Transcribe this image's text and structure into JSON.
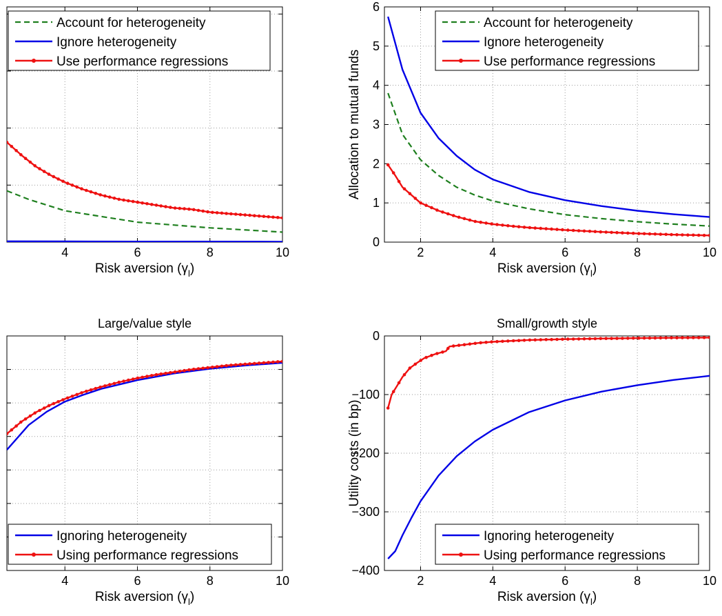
{
  "chart_data": [
    {
      "type": "line",
      "panel": "top-left",
      "title": "",
      "xlabel": "Risk aversion (γ",
      "xlabel_subscript": "l",
      "xlabel_suffix": ")",
      "ylabel": "",
      "xlim": [
        2.4,
        10
      ],
      "ylim": [
        0,
        1.65
      ],
      "xticks": [
        4,
        6,
        8,
        10
      ],
      "xtick_labels": [
        "4",
        "6",
        "8",
        "10"
      ],
      "yticks": [
        0.4,
        0.8,
        1.2,
        1.6
      ],
      "ytick_labels": [],
      "grid": true,
      "legend": {
        "placement": "top",
        "entries": [
          "Account for heterogeneity",
          "Ignore heterogeneity",
          "Use performance regressions"
        ]
      },
      "series": [
        {
          "name": "Account for heterogeneity",
          "style": "dashed",
          "color": "#1e7f1e",
          "markers": false,
          "points": [
            [
              2.4,
              0.36
            ],
            [
              3,
              0.3
            ],
            [
              3.5,
              0.26
            ],
            [
              4,
              0.22
            ],
            [
              5,
              0.18
            ],
            [
              6,
              0.14
            ],
            [
              7,
              0.12
            ],
            [
              8,
              0.1
            ],
            [
              9,
              0.085
            ],
            [
              10,
              0.07
            ]
          ]
        },
        {
          "name": "Ignore heterogeneity",
          "style": "solid",
          "color": "#0000e6",
          "markers": false,
          "points": [
            [
              2.4,
              0.006
            ],
            [
              4,
              0.005
            ],
            [
              6,
              0.004
            ],
            [
              8,
              0.004
            ],
            [
              10,
              0.003
            ]
          ]
        },
        {
          "name": "Use performance regressions",
          "style": "solid",
          "color": "#ee1111",
          "markers": true,
          "points": [
            [
              2.4,
              0.7
            ],
            [
              2.8,
              0.61
            ],
            [
              3.2,
              0.53
            ],
            [
              3.6,
              0.47
            ],
            [
              4,
              0.42
            ],
            [
              4.5,
              0.37
            ],
            [
              5,
              0.33
            ],
            [
              5.5,
              0.3
            ],
            [
              6,
              0.28
            ],
            [
              6.5,
              0.26
            ],
            [
              7,
              0.24
            ],
            [
              7.5,
              0.23
            ],
            [
              8,
              0.21
            ],
            [
              8.5,
              0.2
            ],
            [
              9,
              0.19
            ],
            [
              9.5,
              0.18
            ],
            [
              10,
              0.17
            ]
          ]
        }
      ]
    },
    {
      "type": "line",
      "panel": "top-right",
      "title": "",
      "xlabel": "Risk aversion (γ",
      "xlabel_subscript": "l",
      "xlabel_suffix": ")",
      "ylabel": "Allocation to mutual funds",
      "xlim": [
        1,
        10
      ],
      "ylim": [
        0,
        6
      ],
      "xticks": [
        2,
        4,
        6,
        8,
        10
      ],
      "xtick_labels": [
        "2",
        "4",
        "6",
        "8",
        "10"
      ],
      "yticks": [
        0,
        1,
        2,
        3,
        4,
        5,
        6
      ],
      "ytick_labels": [
        "0",
        "1",
        "2",
        "3",
        "4",
        "5",
        "6"
      ],
      "grid": true,
      "legend": {
        "placement": "top-right",
        "entries": [
          "Account for heterogeneity",
          "Ignore heterogeneity",
          "Use performance regressions"
        ]
      },
      "series": [
        {
          "name": "Account for heterogeneity",
          "style": "dashed",
          "color": "#1e7f1e",
          "markers": false,
          "points": [
            [
              1.1,
              3.8
            ],
            [
              1.5,
              2.75
            ],
            [
              2,
              2.1
            ],
            [
              2.5,
              1.7
            ],
            [
              3,
              1.4
            ],
            [
              3.5,
              1.2
            ],
            [
              4,
              1.05
            ],
            [
              5,
              0.85
            ],
            [
              6,
              0.7
            ],
            [
              7,
              0.6
            ],
            [
              8,
              0.52
            ],
            [
              9,
              0.46
            ],
            [
              10,
              0.41
            ]
          ]
        },
        {
          "name": "Ignore heterogeneity",
          "style": "solid",
          "color": "#0000e6",
          "markers": false,
          "points": [
            [
              1.1,
              5.75
            ],
            [
              1.5,
              4.4
            ],
            [
              2,
              3.3
            ],
            [
              2.5,
              2.65
            ],
            [
              3,
              2.2
            ],
            [
              3.5,
              1.85
            ],
            [
              4,
              1.6
            ],
            [
              5,
              1.28
            ],
            [
              6,
              1.07
            ],
            [
              7,
              0.92
            ],
            [
              8,
              0.8
            ],
            [
              9,
              0.71
            ],
            [
              10,
              0.64
            ]
          ]
        },
        {
          "name": "Use performance regressions",
          "style": "solid",
          "color": "#ee1111",
          "markers": true,
          "points": [
            [
              1.1,
              1.97
            ],
            [
              1.3,
              1.7
            ],
            [
              1.5,
              1.4
            ],
            [
              1.75,
              1.2
            ],
            [
              2,
              1.0
            ],
            [
              2.5,
              0.8
            ],
            [
              3,
              0.65
            ],
            [
              3.5,
              0.53
            ],
            [
              4,
              0.46
            ],
            [
              4.5,
              0.41
            ],
            [
              5,
              0.37
            ],
            [
              6,
              0.31
            ],
            [
              7,
              0.26
            ],
            [
              8,
              0.22
            ],
            [
              9,
              0.19
            ],
            [
              10,
              0.17
            ]
          ]
        }
      ]
    },
    {
      "type": "line",
      "panel": "bottom-left",
      "title": "Large/value style",
      "xlabel": "Risk aversion (γ",
      "xlabel_subscript": "l",
      "xlabel_suffix": ")",
      "ylabel": "",
      "xlim": [
        2.4,
        10
      ],
      "ylim": [
        -350,
        0
      ],
      "xticks": [
        4,
        6,
        8,
        10
      ],
      "xtick_labels": [
        "4",
        "6",
        "8",
        "10"
      ],
      "yticks": [
        -50,
        -100,
        -150,
        -200,
        -250,
        -300
      ],
      "ytick_labels": [],
      "grid": true,
      "legend": {
        "placement": "bottom",
        "entries": [
          "Ignoring heterogeneity",
          "Using performance regressions"
        ]
      },
      "series": [
        {
          "name": "Ignoring heterogeneity",
          "style": "solid",
          "color": "#0000e6",
          "markers": false,
          "points": [
            [
              2.4,
              -170
            ],
            [
              3,
              -133
            ],
            [
              3.5,
              -113
            ],
            [
              4,
              -98
            ],
            [
              4.5,
              -88
            ],
            [
              5,
              -79
            ],
            [
              6,
              -66
            ],
            [
              7,
              -56
            ],
            [
              8,
              -49
            ],
            [
              9,
              -44
            ],
            [
              10,
              -40
            ]
          ]
        },
        {
          "name": "Using performance regressions",
          "style": "solid",
          "color": "#ee1111",
          "markers": true,
          "points": [
            [
              2.4,
              -146
            ],
            [
              2.8,
              -128
            ],
            [
              3.2,
              -114
            ],
            [
              3.6,
              -103
            ],
            [
              4,
              -94
            ],
            [
              4.5,
              -84
            ],
            [
              5,
              -76
            ],
            [
              5.5,
              -69
            ],
            [
              6,
              -63
            ],
            [
              6.5,
              -58
            ],
            [
              7,
              -54
            ],
            [
              7.5,
              -50
            ],
            [
              8,
              -47
            ],
            [
              8.5,
              -44
            ],
            [
              9,
              -42
            ],
            [
              9.5,
              -40
            ],
            [
              10,
              -38
            ]
          ]
        }
      ]
    },
    {
      "type": "line",
      "panel": "bottom-right",
      "title": "Small/growth style",
      "xlabel": "Risk aversion (γ",
      "xlabel_subscript": "l",
      "xlabel_suffix": ")",
      "ylabel": "Utility costs (in bp)",
      "xlim": [
        1,
        10
      ],
      "ylim": [
        -400,
        0
      ],
      "xticks": [
        2,
        4,
        6,
        8,
        10
      ],
      "xtick_labels": [
        "2",
        "4",
        "6",
        "8",
        "10"
      ],
      "yticks": [
        0,
        -100,
        -200,
        -300,
        -400
      ],
      "ytick_labels": [
        "0",
        "−100",
        "−200",
        "−300",
        "−400"
      ],
      "grid": true,
      "legend": {
        "placement": "bottom-right",
        "entries": [
          "Ignoring heterogeneity",
          "Using performance regressions"
        ]
      },
      "series": [
        {
          "name": "Ignoring heterogeneity",
          "style": "solid",
          "color": "#0000e6",
          "markers": false,
          "points": [
            [
              1.1,
              -380
            ],
            [
              1.3,
              -367
            ],
            [
              1.5,
              -340
            ],
            [
              1.75,
              -310
            ],
            [
              2,
              -282
            ],
            [
              2.5,
              -238
            ],
            [
              3,
              -205
            ],
            [
              3.5,
              -180
            ],
            [
              4,
              -160
            ],
            [
              5,
              -130
            ],
            [
              6,
              -110
            ],
            [
              7,
              -95
            ],
            [
              8,
              -84
            ],
            [
              9,
              -75
            ],
            [
              10,
              -68
            ]
          ]
        },
        {
          "name": "Using performance regressions",
          "style": "solid",
          "color": "#ee1111",
          "markers": true,
          "points": [
            [
              1.1,
              -123
            ],
            [
              1.2,
              -100
            ],
            [
              1.35,
              -85
            ],
            [
              1.5,
              -70
            ],
            [
              1.7,
              -55
            ],
            [
              1.9,
              -46
            ],
            [
              2.1,
              -38
            ],
            [
              2.4,
              -31
            ],
            [
              2.7,
              -26
            ],
            [
              2.8,
              -18
            ],
            [
              3.2,
              -15
            ],
            [
              3.6,
              -12
            ],
            [
              4,
              -10
            ],
            [
              5,
              -7
            ],
            [
              6,
              -5.5
            ],
            [
              7,
              -4.5
            ],
            [
              8,
              -3.8
            ],
            [
              9,
              -3.2
            ],
            [
              10,
              -2.8
            ]
          ]
        }
      ]
    }
  ]
}
